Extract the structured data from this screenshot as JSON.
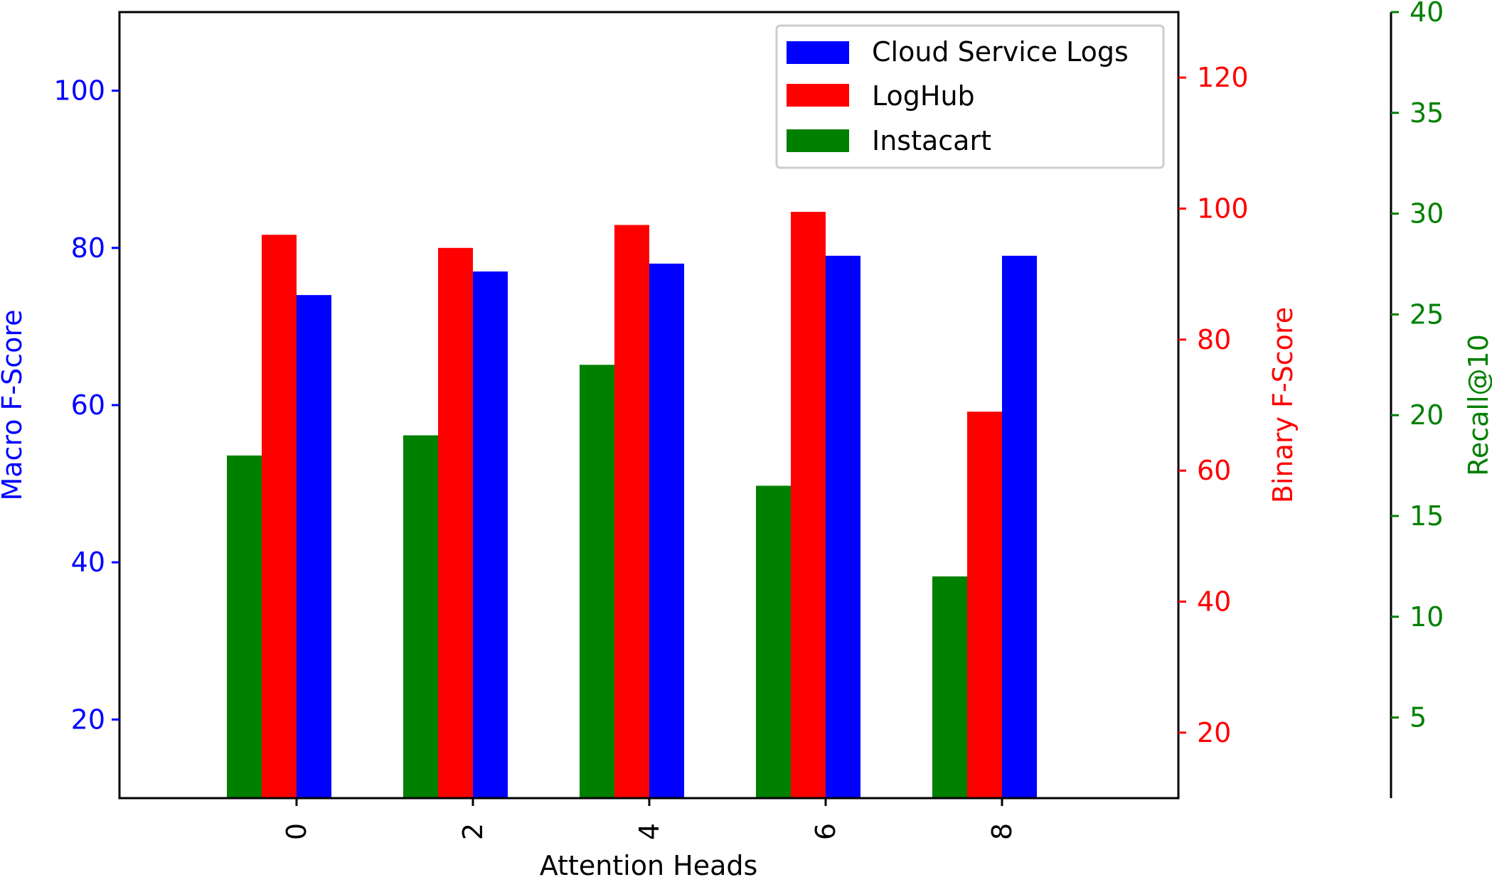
{
  "chart_data": {
    "type": "bar",
    "xlabel": "Attention Heads",
    "categories": [
      "0",
      "2",
      "4",
      "6",
      "8"
    ],
    "axes": {
      "left": {
        "label": "Macro F-Score",
        "color": "#0000ff",
        "ylim": [
          10,
          110
        ],
        "ticks": [
          20,
          40,
          60,
          80,
          100
        ]
      },
      "right": {
        "label": "Binary F-Score",
        "color": "#ff0000",
        "ylim": [
          10,
          130
        ],
        "ticks": [
          20,
          40,
          60,
          80,
          100,
          120
        ]
      },
      "far_right": {
        "label": "Recall@10",
        "color": "#008000",
        "ylim": [
          1,
          40
        ],
        "ticks": [
          5,
          10,
          15,
          20,
          25,
          30,
          35,
          40
        ]
      }
    },
    "series": [
      {
        "name": "Cloud Service Logs",
        "axis": "left",
        "color": "#0000ff",
        "values": [
          74,
          77,
          78,
          79,
          79
        ]
      },
      {
        "name": "LogHub",
        "axis": "right",
        "color": "#ff0000",
        "values": [
          96,
          94,
          97.5,
          99.5,
          69
        ]
      },
      {
        "name": "Instacart",
        "axis": "far_right",
        "color": "#008000",
        "values": [
          18,
          19,
          22.5,
          16.5,
          12
        ]
      }
    ],
    "legend_order": [
      "Cloud Service Logs",
      "LogHub",
      "Instacart"
    ],
    "legend_position": "top-right",
    "grid": false
  }
}
